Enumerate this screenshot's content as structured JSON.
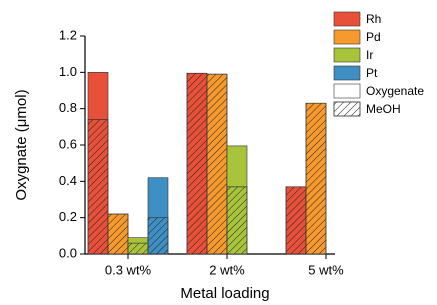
{
  "chart_data": {
    "type": "stacked-grouped-bar",
    "x_label": "Metal loading",
    "y_label": "Oxygnate (μmol)",
    "categories": [
      "0.3 wt%",
      "2 wt%",
      "5 wt%"
    ],
    "series": [
      {
        "name": "Rh",
        "color": "#e8503a",
        "meoh": [
          0.74,
          0.995,
          0.37
        ],
        "oxygenate": [
          0.26,
          null,
          null
        ]
      },
      {
        "name": "Pd",
        "color": "#f79a2e",
        "meoh": [
          0.22,
          0.99,
          0.83
        ],
        "oxygenate": [
          null,
          null,
          null
        ]
      },
      {
        "name": "Ir",
        "color": "#a8c43a",
        "meoh": [
          0.06,
          0.37,
          null
        ],
        "oxygenate": [
          0.03,
          0.225,
          null
        ]
      },
      {
        "name": "Pt",
        "color": "#3f8fc4",
        "meoh": [
          0.2,
          null,
          null
        ],
        "oxygenate": [
          0.22,
          null,
          null
        ]
      }
    ],
    "fill_styles": [
      {
        "name": "Oxygenate"
      },
      {
        "name": "MeOH"
      }
    ],
    "ylim": [
      0,
      1.2
    ],
    "yticks": [
      {
        "value": 0,
        "label": "0.0"
      },
      0.2,
      0.4,
      0.6,
      0.8,
      {
        "value": 1,
        "label": "1.0"
      },
      1.2
    ]
  }
}
